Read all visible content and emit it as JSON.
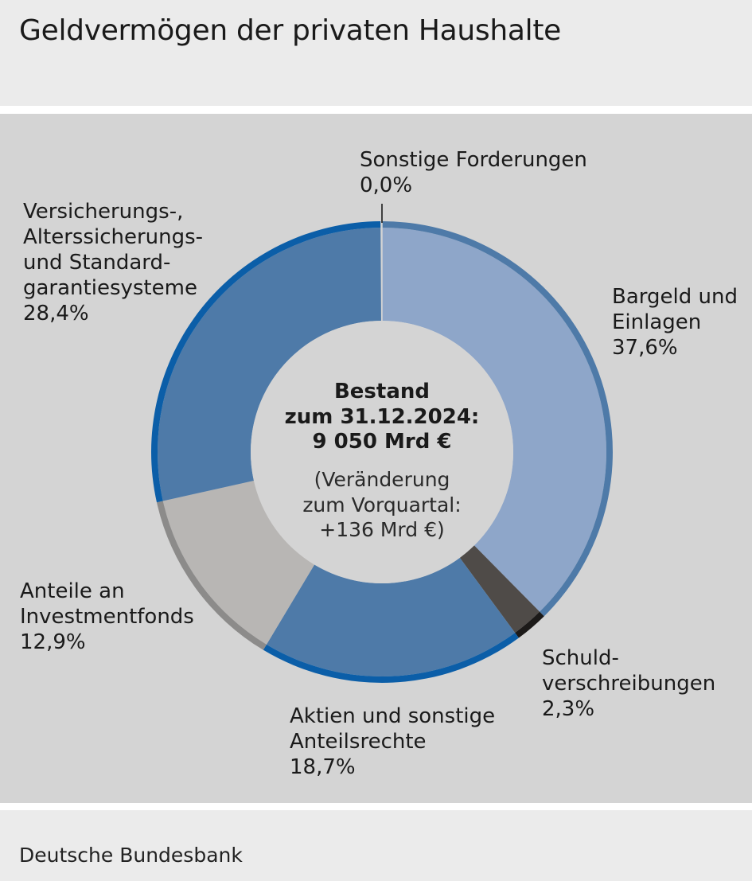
{
  "title": "Geldvermögen der privaten Haushalte",
  "source": "Deutsche Bundesbank",
  "chart_data": {
    "type": "donut",
    "title": "Geldvermögen der privaten Haushalte",
    "unit": "%",
    "center": {
      "line1": "Bestand",
      "line2": "zum 31.12.2024:",
      "line3": "9 050 Mrd €",
      "note1": "(Veränderung",
      "note2": "zum Vorquartal:",
      "note3": "+136 Mrd €)"
    },
    "slices": [
      {
        "key": "bargeld",
        "lines": [
          "Bargeld und",
          "Einlagen"
        ],
        "value": 37.6,
        "value_label": "37,6%",
        "fill": "#8ea6c9",
        "rim": "#4e7aa8"
      },
      {
        "key": "schuld",
        "lines": [
          "Schuld-",
          "verschreibungen"
        ],
        "value": 2.3,
        "value_label": "2,3%",
        "fill": "#4f4b48",
        "rim": "#1c1a19"
      },
      {
        "key": "aktien",
        "lines": [
          "Aktien und sonstige",
          "Anteilsrechte"
        ],
        "value": 18.7,
        "value_label": "18,7%",
        "fill": "#4e7aa8",
        "rim": "#0b5ea8"
      },
      {
        "key": "anteile",
        "lines": [
          "Anteile an",
          "Investmentfonds"
        ],
        "value": 12.9,
        "value_label": "12,9%",
        "fill": "#b8b6b4",
        "rim": "#8c8b8a"
      },
      {
        "key": "versicherung",
        "lines": [
          "Versicherungs-,",
          "Alterssicherungs-",
          "und Standard-",
          "garantiesysteme"
        ],
        "value": 28.4,
        "value_label": "28,4%",
        "fill": "#4e7aa8",
        "rim": "#0b5ea8"
      },
      {
        "key": "sonstige",
        "lines": [
          "Sonstige Forderungen"
        ],
        "value": 0.0,
        "value_label": "0,0%",
        "fill": "#4e7aa8",
        "rim": "#0b5ea8"
      }
    ],
    "legend": "none"
  }
}
